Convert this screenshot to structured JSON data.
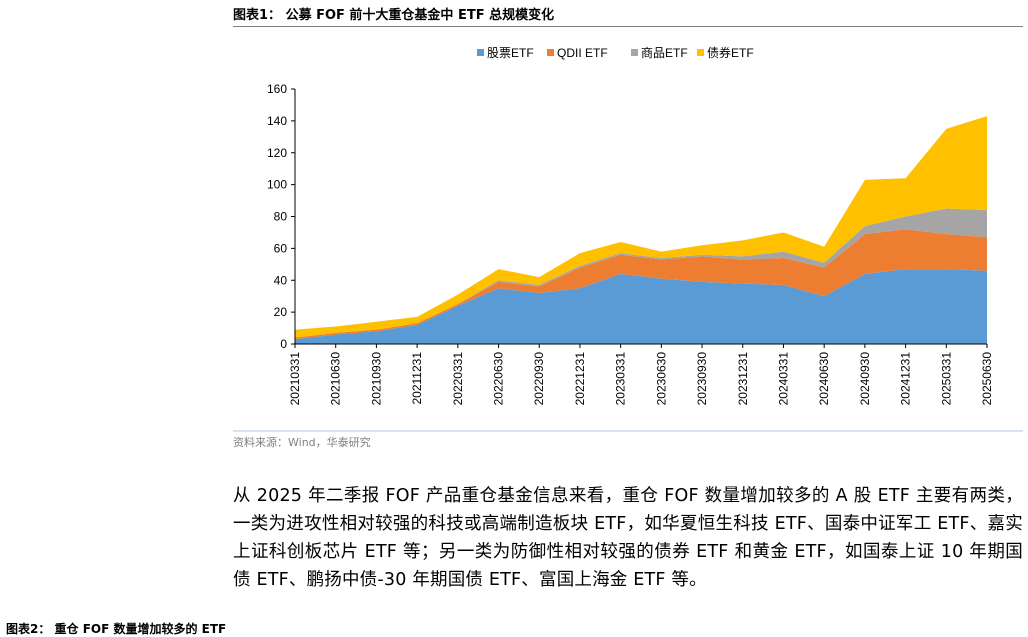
{
  "header": {
    "title": "图表1：  公募 FOF 前十大重仓基金中 ETF 总规模变化"
  },
  "chart_data": {
    "type": "area",
    "stacked": true,
    "categories": [
      "20210331",
      "20210630",
      "20210930",
      "20211231",
      "20220331",
      "20220630",
      "20220930",
      "20221231",
      "20230331",
      "20230630",
      "20230930",
      "20231231",
      "20240331",
      "20240630",
      "20240930",
      "20241231",
      "20250331",
      "20250630"
    ],
    "series": [
      {
        "name": "股票ETF",
        "color": "#5b9bd5",
        "values": [
          3,
          6,
          8,
          12,
          24,
          35,
          32,
          35,
          44,
          41,
          39,
          38,
          37,
          30,
          44,
          47,
          47,
          46
        ]
      },
      {
        "name": "QDII ETF",
        "color": "#ed7d31",
        "values": [
          1,
          1,
          1,
          1,
          1,
          4,
          4,
          13,
          12,
          12,
          16,
          15,
          17,
          18,
          25,
          25,
          22,
          21
        ]
      },
      {
        "name": "商品ETF",
        "color": "#a5a5a5",
        "values": [
          0,
          0,
          0,
          0,
          0,
          1,
          1,
          1,
          1,
          1,
          1,
          2,
          4,
          3,
          5,
          8,
          16,
          17
        ]
      },
      {
        "name": "债券ETF",
        "color": "#ffc000",
        "values": [
          5,
          4,
          5,
          4,
          6,
          7,
          5,
          8,
          7,
          4,
          6,
          10,
          12,
          10,
          29,
          24,
          50,
          59
        ]
      }
    ],
    "ylim": [
      0,
      160
    ],
    "yticks": [
      0,
      20,
      40,
      60,
      80,
      100,
      120,
      140,
      160
    ],
    "legend_position": "top-center",
    "grid": false
  },
  "source": "资料来源：Wind，华泰研究",
  "body_text": "从 2025 年二季报 FOF 产品重仓基金信息来看，重仓 FOF 数量增加较多的 A 股 ETF 主要有两类，一类为进攻性相对较强的科技或高端制造板块 ETF，如华夏恒生科技 ETF、国泰中证军工 ETF、嘉实上证科创板芯片 ETF 等；另一类为防御性相对较强的债券 ETF 和黄金 ETF，如国泰上证 10 年期国债 ETF、鹏扬中债-30 年期国债 ETF、富国上海金 ETF 等。",
  "footer": "图表2：  重仓 FOF 数量增加较多的 ETF"
}
